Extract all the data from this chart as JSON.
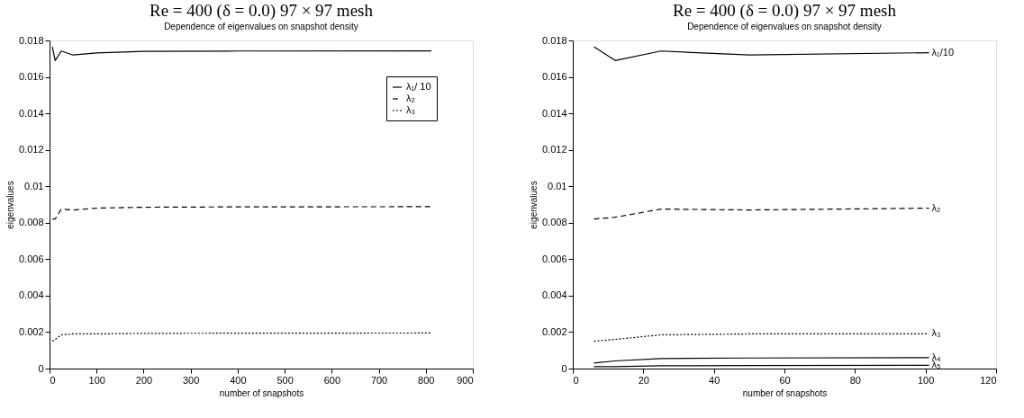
{
  "chart_data": [
    {
      "type": "line",
      "title": "Re = 400 (δ = 0.0) 97 × 97 mesh",
      "subtitle": "Dependence of eigenvalues on snapshot density",
      "xlabel": "number of snapshots",
      "ylabel": "eigenvalues",
      "x": [
        6,
        12,
        25,
        50,
        100,
        200,
        400,
        812
      ],
      "xlim": [
        0,
        900
      ],
      "xticks": [
        0,
        100,
        200,
        300,
        400,
        500,
        600,
        700,
        800,
        900
      ],
      "ylim": [
        0,
        0.018
      ],
      "yticks": [
        0,
        0.002,
        0.004,
        0.006,
        0.008,
        0.01,
        0.012,
        0.014,
        0.016,
        0.018
      ],
      "grid": false,
      "legend": "top right",
      "series": [
        {
          "name": "λ₁/ 10",
          "color": "#000000",
          "line_style": "solid",
          "values": [
            0.01765,
            0.0169,
            0.01742,
            0.0172,
            0.01732,
            0.0174,
            0.01742,
            0.01743
          ]
        },
        {
          "name": "λ₂",
          "color": "#000000",
          "line_style": "dashed",
          "values": [
            0.0082,
            0.0082,
            0.00875,
            0.0087,
            0.0088,
            0.00885,
            0.00887,
            0.00888
          ]
        },
        {
          "name": "λ₃",
          "color": "#000000",
          "line_style": "dotted",
          "values": [
            0.0015,
            0.0016,
            0.00185,
            0.0019,
            0.0019,
            0.00193,
            0.00194,
            0.00195
          ]
        }
      ]
    },
    {
      "type": "line",
      "title": "Re = 400 (δ = 0.0) 97 × 97 mesh",
      "subtitle": "Dependence of eigenvalues on snapshot density",
      "xlabel": "number of snapshots",
      "ylabel": "eigenvalues",
      "x": [
        6,
        12,
        25,
        50,
        101
      ],
      "xlim": [
        0,
        120
      ],
      "xticks": [
        0,
        20,
        40,
        60,
        80,
        100,
        120
      ],
      "ylim": [
        0,
        0.018
      ],
      "yticks": [
        0,
        0.002,
        0.004,
        0.006,
        0.008,
        0.01,
        0.012,
        0.014,
        0.016,
        0.018
      ],
      "grid": false,
      "legend": false,
      "series": [
        {
          "name": "λ₁/10",
          "color": "#000000",
          "line_style": "solid",
          "values": [
            0.01765,
            0.0169,
            0.01742,
            0.0172,
            0.01733
          ]
        },
        {
          "name": "λ₂",
          "color": "#000000",
          "line_style": "dashed",
          "values": [
            0.0082,
            0.0083,
            0.00875,
            0.0087,
            0.0088
          ]
        },
        {
          "name": "λ₃",
          "color": "#000000",
          "line_style": "dotted",
          "values": [
            0.0015,
            0.0016,
            0.00185,
            0.0019,
            0.0019
          ]
        },
        {
          "name": "λ₄",
          "color": "#000000",
          "line_style": "solid",
          "values": [
            0.0003,
            0.00042,
            0.00055,
            0.00058,
            0.0006
          ]
        },
        {
          "name": "λ₅",
          "color": "#000000",
          "line_style": "solid",
          "values": [
            0.0001,
            0.0001,
            0.00015,
            0.00017,
            0.00018
          ]
        }
      ]
    }
  ]
}
